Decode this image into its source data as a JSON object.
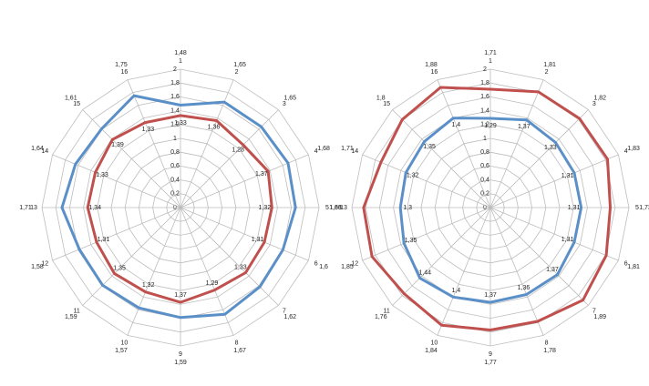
{
  "chart_data": [
    {
      "type": "radar",
      "categories": [
        "1",
        "2",
        "3",
        "4",
        "5",
        "6",
        "7",
        "8",
        "9",
        "10",
        "11",
        "12",
        "13",
        "14",
        "15",
        "16"
      ],
      "ylim": [
        0,
        2
      ],
      "yticks": [
        0,
        {
          "value": 0.2,
          "label": "0,2"
        },
        {
          "value": 0.4,
          "label": "0,4"
        },
        {
          "value": 0.6,
          "label": "0,6"
        },
        {
          "value": 0.8,
          "label": "0,8"
        },
        1,
        {
          "value": 1.2,
          "label": "1,2"
        },
        {
          "value": 1.4,
          "label": "1,4"
        },
        {
          "value": 1.6,
          "label": "1,6"
        },
        {
          "value": 1.8,
          "label": "1,8"
        },
        2
      ],
      "series": [
        {
          "color": "#5b8fc7",
          "values": [
            1.48,
            1.65,
            1.65,
            1.68,
            1.66,
            1.6,
            1.62,
            1.67,
            1.59,
            1.57,
            1.59,
            1.58,
            1.71,
            1.64,
            1.61,
            1.75
          ],
          "value_labels": [
            "1,48",
            "1,65",
            "1,65",
            "1,68",
            "1,66",
            "1,6",
            "1,62",
            "1,67",
            "1,59",
            "1,57",
            "1,59",
            "1,58",
            "1,71",
            "1,64",
            "1,61",
            "1,75"
          ]
        },
        {
          "color": "#c0504d",
          "values": [
            1.33,
            1.36,
            1.28,
            1.37,
            1.32,
            1.31,
            1.33,
            1.29,
            1.37,
            1.32,
            1.35,
            1.31,
            1.34,
            1.33,
            1.39,
            1.33
          ],
          "value_labels": [
            "1,33",
            "1,36",
            "1,28",
            "1,37",
            "1,32",
            "1,31",
            "1,33",
            "1,29",
            "1,37",
            "1,32",
            "1,35",
            "1,31",
            "1,34",
            "1,33",
            "1,39",
            "1,33"
          ]
        }
      ]
    },
    {
      "type": "radar",
      "categories": [
        "1",
        "2",
        "3",
        "4",
        "5",
        "6",
        "7",
        "8",
        "9",
        "10",
        "11",
        "12",
        "13",
        "14",
        "15",
        "16"
      ],
      "ylim": [
        0,
        2
      ],
      "yticks": [
        0,
        {
          "value": 0.2,
          "label": "0,2"
        },
        {
          "value": 0.4,
          "label": "0,4"
        },
        {
          "value": 0.6,
          "label": "0,6"
        },
        {
          "value": 0.8,
          "label": "0,8"
        },
        1,
        {
          "value": 1.2,
          "label": "1,2"
        },
        {
          "value": 1.4,
          "label": "1,4"
        },
        {
          "value": 1.6,
          "label": "1,6"
        },
        {
          "value": 1.8,
          "label": "1,8"
        },
        2
      ],
      "series": [
        {
          "color": "#c0504d",
          "values": [
            1.71,
            1.81,
            1.82,
            1.83,
            1.73,
            1.81,
            1.89,
            1.78,
            1.77,
            1.84,
            1.76,
            1.85,
            1.83,
            1.71,
            1.8,
            1.88
          ],
          "value_labels": [
            "1,71",
            "1,81",
            "1,82",
            "1,83",
            "1,73",
            "1,81",
            "1,89",
            "1,78",
            "1,77",
            "1,84",
            "1,76",
            "1,85",
            "1,83",
            "1,71",
            "1,8",
            "1,88"
          ]
        },
        {
          "color": "#5b8fc7",
          "values": [
            1.29,
            1.37,
            1.33,
            1.31,
            1.31,
            1.31,
            1.37,
            1.36,
            1.37,
            1.4,
            1.44,
            1.35,
            1.3,
            1.32,
            1.35,
            1.4
          ],
          "value_labels": [
            "1,29",
            "1,37",
            "1,33",
            "1,31",
            "1,31",
            "1,31",
            "1,37",
            "1,36",
            "1,37",
            "1,4",
            "1,44",
            "1,35",
            "1,3",
            "1,32",
            "1,35",
            "1,4"
          ]
        }
      ]
    }
  ]
}
